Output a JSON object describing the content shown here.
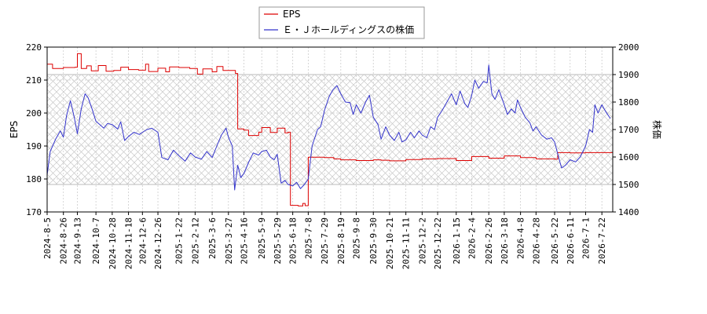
{
  "chart_data": {
    "type": "line",
    "legend": {
      "placement": "top-center",
      "entries": [
        {
          "label": "EPS",
          "color": "#dd0000"
        },
        {
          "label": "Ｅ・Ｊホールディングスの株価",
          "color": "#3333cc"
        }
      ]
    },
    "y_left": {
      "label": "EPS",
      "range": [
        170,
        220
      ],
      "ticks": [
        "170",
        "180",
        "190",
        "200",
        "210",
        "220"
      ]
    },
    "y_right": {
      "label": "株価",
      "range": [
        1400,
        2000
      ],
      "ticks": [
        "1400",
        "1500",
        "1600",
        "1700",
        "1800",
        "1900",
        "2000"
      ]
    },
    "x_axis": {
      "range": [
        "2024-08-05",
        "2026-08-05"
      ],
      "tick_labels": [
        "2024-8-5",
        "2024-8-26",
        "2024-9-13",
        "2024-10-7",
        "2024-10-28",
        "2024-11-18",
        "2024-12-6",
        "2024-12-26",
        "2025-1-22",
        "2025-2-12",
        "2025-3-6",
        "2025-3-27",
        "2025-4-16",
        "2025-5-9",
        "2025-5-29",
        "2025-6-18",
        "2025-7-8",
        "2025-7-29",
        "2025-8-19",
        "2025-9-8",
        "2025-9-30",
        "2025-10-21",
        "2025-11-11",
        "2025-12-2",
        "2025-12-22",
        "2026-1-15",
        "2026-2-4",
        "2026-2-26",
        "2026-3-18",
        "2026-4-8",
        "2026-4-28",
        "2026-5-22",
        "2026-6-11",
        "2026-7-1",
        "2026-7-22"
      ]
    },
    "grid": true,
    "hatched_band": {
      "axis": "right",
      "range": [
        1500,
        1900
      ]
    },
    "series": [
      {
        "name": "EPS",
        "axis": "left",
        "color": "#dd0000",
        "points": [
          [
            "2024-08-05",
            214.8
          ],
          [
            "2024-08-12",
            213.5
          ],
          [
            "2024-08-26",
            213.8
          ],
          [
            "2024-09-10",
            213.9
          ],
          [
            "2024-09-13",
            218.0
          ],
          [
            "2024-09-18",
            213.5
          ],
          [
            "2024-09-25",
            214.3
          ],
          [
            "2024-10-01",
            212.8
          ],
          [
            "2024-10-10",
            214.4
          ],
          [
            "2024-10-20",
            212.7
          ],
          [
            "2024-10-30",
            212.9
          ],
          [
            "2024-11-08",
            213.9
          ],
          [
            "2024-11-18",
            213.2
          ],
          [
            "2024-12-01",
            213.0
          ],
          [
            "2024-12-10",
            214.8
          ],
          [
            "2024-12-14",
            212.6
          ],
          [
            "2024-12-26",
            213.6
          ],
          [
            "2025-01-05",
            212.5
          ],
          [
            "2025-01-10",
            214.0
          ],
          [
            "2025-01-22",
            213.8
          ],
          [
            "2025-02-05",
            213.5
          ],
          [
            "2025-02-15",
            211.8
          ],
          [
            "2025-02-22",
            213.4
          ],
          [
            "2025-03-06",
            212.5
          ],
          [
            "2025-03-12",
            214.1
          ],
          [
            "2025-03-20",
            212.9
          ],
          [
            "2025-04-05",
            212.0
          ],
          [
            "2025-04-08",
            195.2
          ],
          [
            "2025-04-16",
            194.8
          ],
          [
            "2025-04-22",
            193.2
          ],
          [
            "2025-05-05",
            194.2
          ],
          [
            "2025-05-09",
            195.6
          ],
          [
            "2025-05-20",
            194.1
          ],
          [
            "2025-05-29",
            195.4
          ],
          [
            "2025-06-08",
            194.0
          ],
          [
            "2025-06-12",
            194.2
          ],
          [
            "2025-06-15",
            172.0
          ],
          [
            "2025-06-25",
            171.8
          ],
          [
            "2025-07-01",
            172.6
          ],
          [
            "2025-07-04",
            171.9
          ],
          [
            "2025-07-08",
            186.6
          ],
          [
            "2025-07-29",
            186.5
          ],
          [
            "2025-08-10",
            186.1
          ],
          [
            "2025-08-19",
            185.8
          ],
          [
            "2025-09-08",
            185.6
          ],
          [
            "2025-09-30",
            185.8
          ],
          [
            "2025-10-10",
            185.7
          ],
          [
            "2025-10-21",
            185.5
          ],
          [
            "2025-11-11",
            185.9
          ],
          [
            "2025-12-02",
            186.1
          ],
          [
            "2025-12-22",
            186.2
          ],
          [
            "2026-01-15",
            185.6
          ],
          [
            "2026-02-04",
            186.8
          ],
          [
            "2026-02-26",
            186.3
          ],
          [
            "2026-03-18",
            187.0
          ],
          [
            "2026-04-08",
            186.5
          ],
          [
            "2026-04-28",
            186.1
          ],
          [
            "2026-05-22",
            186.0
          ],
          [
            "2026-05-26",
            188.0
          ],
          [
            "2026-06-11",
            187.9
          ],
          [
            "2026-07-01",
            188.0
          ],
          [
            "2026-07-22",
            188.0
          ],
          [
            "2026-08-05",
            188.0
          ]
        ]
      },
      {
        "name": "Ｅ・Ｊホールディングスの株価",
        "axis": "right",
        "color": "#3333cc",
        "points": [
          [
            "2024-08-05",
            1535
          ],
          [
            "2024-08-09",
            1620
          ],
          [
            "2024-08-16",
            1665
          ],
          [
            "2024-08-22",
            1695
          ],
          [
            "2024-08-26",
            1672
          ],
          [
            "2024-08-30",
            1750
          ],
          [
            "2024-09-04",
            1805
          ],
          [
            "2024-09-09",
            1745
          ],
          [
            "2024-09-13",
            1685
          ],
          [
            "2024-09-18",
            1775
          ],
          [
            "2024-09-23",
            1830
          ],
          [
            "2024-09-27",
            1815
          ],
          [
            "2024-10-02",
            1775
          ],
          [
            "2024-10-07",
            1730
          ],
          [
            "2024-10-12",
            1718
          ],
          [
            "2024-10-17",
            1705
          ],
          [
            "2024-10-22",
            1722
          ],
          [
            "2024-10-28",
            1718
          ],
          [
            "2024-11-04",
            1702
          ],
          [
            "2024-11-08",
            1728
          ],
          [
            "2024-11-13",
            1660
          ],
          [
            "2024-11-18",
            1675
          ],
          [
            "2024-11-25",
            1690
          ],
          [
            "2024-12-02",
            1682
          ],
          [
            "2024-12-06",
            1690
          ],
          [
            "2024-12-12",
            1700
          ],
          [
            "2024-12-18",
            1705
          ],
          [
            "2024-12-26",
            1690
          ],
          [
            "2024-12-31",
            1598
          ],
          [
            "2025-01-08",
            1590
          ],
          [
            "2025-01-15",
            1625
          ],
          [
            "2025-01-22",
            1605
          ],
          [
            "2025-01-30",
            1585
          ],
          [
            "2025-02-06",
            1615
          ],
          [
            "2025-02-12",
            1600
          ],
          [
            "2025-02-20",
            1592
          ],
          [
            "2025-02-27",
            1620
          ],
          [
            "2025-03-06",
            1598
          ],
          [
            "2025-03-12",
            1640
          ],
          [
            "2025-03-18",
            1680
          ],
          [
            "2025-03-24",
            1705
          ],
          [
            "2025-03-27",
            1672
          ],
          [
            "2025-04-01",
            1640
          ],
          [
            "2025-04-04",
            1480
          ],
          [
            "2025-04-08",
            1570
          ],
          [
            "2025-04-12",
            1525
          ],
          [
            "2025-04-16",
            1540
          ],
          [
            "2025-04-22",
            1580
          ],
          [
            "2025-04-28",
            1615
          ],
          [
            "2025-05-05",
            1607
          ],
          [
            "2025-05-09",
            1620
          ],
          [
            "2025-05-15",
            1625
          ],
          [
            "2025-05-20",
            1600
          ],
          [
            "2025-05-25",
            1590
          ],
          [
            "2025-05-29",
            1610
          ],
          [
            "2025-06-03",
            1505
          ],
          [
            "2025-06-08",
            1515
          ],
          [
            "2025-06-12",
            1500
          ],
          [
            "2025-06-18",
            1495
          ],
          [
            "2025-06-23",
            1508
          ],
          [
            "2025-06-28",
            1485
          ],
          [
            "2025-07-03",
            1500
          ],
          [
            "2025-07-08",
            1520
          ],
          [
            "2025-07-13",
            1640
          ],
          [
            "2025-07-20",
            1700
          ],
          [
            "2025-07-24",
            1710
          ],
          [
            "2025-07-29",
            1770
          ],
          [
            "2025-08-04",
            1820
          ],
          [
            "2025-08-09",
            1845
          ],
          [
            "2025-08-14",
            1860
          ],
          [
            "2025-08-19",
            1830
          ],
          [
            "2025-08-25",
            1800
          ],
          [
            "2025-08-31",
            1798
          ],
          [
            "2025-09-04",
            1755
          ],
          [
            "2025-09-08",
            1790
          ],
          [
            "2025-09-14",
            1760
          ],
          [
            "2025-09-20",
            1800
          ],
          [
            "2025-09-25",
            1825
          ],
          [
            "2025-09-30",
            1745
          ],
          [
            "2025-10-06",
            1718
          ],
          [
            "2025-10-10",
            1665
          ],
          [
            "2025-10-16",
            1710
          ],
          [
            "2025-10-21",
            1680
          ],
          [
            "2025-10-27",
            1660
          ],
          [
            "2025-11-02",
            1690
          ],
          [
            "2025-11-06",
            1655
          ],
          [
            "2025-11-11",
            1662
          ],
          [
            "2025-11-17",
            1690
          ],
          [
            "2025-11-22",
            1670
          ],
          [
            "2025-11-28",
            1695
          ],
          [
            "2025-12-02",
            1680
          ],
          [
            "2025-12-08",
            1670
          ],
          [
            "2025-12-13",
            1710
          ],
          [
            "2025-12-18",
            1700
          ],
          [
            "2025-12-22",
            1745
          ],
          [
            "2025-12-28",
            1770
          ],
          [
            "2026-01-03",
            1800
          ],
          [
            "2026-01-09",
            1830
          ],
          [
            "2026-01-15",
            1790
          ],
          [
            "2026-01-20",
            1840
          ],
          [
            "2026-01-26",
            1795
          ],
          [
            "2026-01-30",
            1780
          ],
          [
            "2026-02-04",
            1825
          ],
          [
            "2026-02-08",
            1880
          ],
          [
            "2026-02-13",
            1850
          ],
          [
            "2026-02-19",
            1875
          ],
          [
            "2026-02-24",
            1870
          ],
          [
            "2026-02-26",
            1935
          ],
          [
            "2026-03-02",
            1830
          ],
          [
            "2026-03-06",
            1810
          ],
          [
            "2026-03-11",
            1845
          ],
          [
            "2026-03-18",
            1790
          ],
          [
            "2026-03-22",
            1755
          ],
          [
            "2026-03-27",
            1775
          ],
          [
            "2026-04-01",
            1760
          ],
          [
            "2026-04-04",
            1808
          ],
          [
            "2026-04-08",
            1780
          ],
          [
            "2026-04-14",
            1745
          ],
          [
            "2026-04-20",
            1725
          ],
          [
            "2026-04-24",
            1695
          ],
          [
            "2026-04-28",
            1710
          ],
          [
            "2026-05-05",
            1680
          ],
          [
            "2026-05-12",
            1665
          ],
          [
            "2026-05-18",
            1670
          ],
          [
            "2026-05-22",
            1655
          ],
          [
            "2026-05-27",
            1600
          ],
          [
            "2026-05-31",
            1560
          ],
          [
            "2026-06-05",
            1570
          ],
          [
            "2026-06-11",
            1590
          ],
          [
            "2026-06-18",
            1582
          ],
          [
            "2026-06-24",
            1600
          ],
          [
            "2026-07-01",
            1640
          ],
          [
            "2026-07-06",
            1700
          ],
          [
            "2026-07-10",
            1690
          ],
          [
            "2026-07-13",
            1790
          ],
          [
            "2026-07-17",
            1760
          ],
          [
            "2026-07-22",
            1790
          ],
          [
            "2026-07-27",
            1765
          ],
          [
            "2026-08-02",
            1740
          ]
        ]
      }
    ]
  }
}
